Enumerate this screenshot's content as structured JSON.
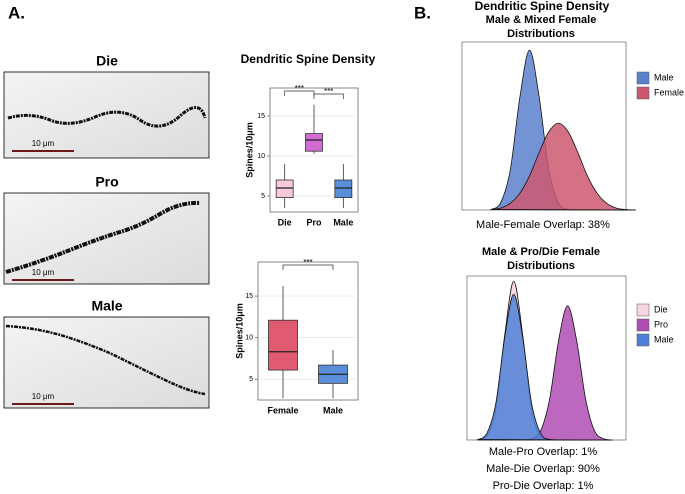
{
  "figure_label_a": "A.",
  "figure_label_b": "B.",
  "panel_b_title": "Dendritic Spine Density",
  "images": [
    {
      "title": "Die",
      "scale": "10 μm"
    },
    {
      "title": "Pro",
      "scale": "10 μm"
    },
    {
      "title": "Male",
      "scale": "10 μm"
    }
  ],
  "chart_data": [
    {
      "type": "box",
      "title": "Dendritic Spine Density",
      "ylabel": "Spines/10μm",
      "categories": [
        "Die",
        "Pro",
        "Male"
      ],
      "colors": [
        "#f8c8dc",
        "#d46ad4",
        "#5b8ed8"
      ],
      "boxes": [
        {
          "whisker_low": 3.5,
          "q1": 4.8,
          "median": 6,
          "q3": 7,
          "whisker_high": 9
        },
        {
          "whisker_low": 10.3,
          "q1": 10.6,
          "median": 12,
          "q3": 12.8,
          "whisker_high": 16.4
        },
        {
          "whisker_low": 3.5,
          "q1": 4.8,
          "median": 6,
          "q3": 7,
          "whisker_high": 9
        }
      ],
      "ylim": [
        3,
        18.5
      ],
      "yticks": [
        5,
        10,
        15
      ],
      "grid": true,
      "annotations": [
        "***",
        "***"
      ]
    },
    {
      "type": "box",
      "ylabel": "Spines/10μm",
      "categories": [
        "Female",
        "Male"
      ],
      "colors": [
        "#e05a72",
        "#5b8ed8"
      ],
      "boxes": [
        {
          "whisker_low": 2.7,
          "q1": 6.1,
          "median": 8.3,
          "q3": 12.1,
          "whisker_high": 16.2
        },
        {
          "whisker_low": 2.7,
          "q1": 4.5,
          "median": 5.6,
          "q3": 6.7,
          "whisker_high": 8.5
        }
      ],
      "ylim": [
        2.5,
        19.1
      ],
      "yticks": [
        5,
        10,
        15
      ],
      "grid": true,
      "annotations": [
        "***"
      ]
    },
    {
      "type": "density",
      "title": [
        "Male & Mixed Female",
        "Distributions"
      ],
      "x": [
        2,
        3,
        4,
        5,
        6,
        7,
        8,
        9,
        10,
        11,
        12,
        13,
        14,
        15,
        16,
        17
      ],
      "xlim": [
        -1,
        16
      ],
      "ylim": [
        0,
        0.35
      ],
      "legend": "right",
      "series": [
        {
          "name": "Male",
          "color": "#5b80cc",
          "values": [
            0.001,
            0.015,
            0.083,
            0.235,
            0.333,
            0.235,
            0.083,
            0.015,
            0.001,
            0,
            0,
            0,
            0,
            0,
            0,
            0
          ]
        },
        {
          "name": "Female",
          "color": "#cc5870",
          "values": [
            0.001,
            0.004,
            0.014,
            0.035,
            0.071,
            0.12,
            0.163,
            0.181,
            0.163,
            0.12,
            0.071,
            0.035,
            0.014,
            0.004,
            0.001,
            0
          ]
        }
      ],
      "annotations": [
        "Male-Female Overlap: 38%"
      ]
    },
    {
      "type": "density",
      "title": [
        "Male & Pro/Die Female",
        "Distributions"
      ],
      "x": [
        2,
        3,
        4,
        5,
        6,
        7,
        8,
        9,
        10,
        11,
        12,
        13,
        14,
        15,
        16,
        17
      ],
      "xlim": [
        0.8,
        18.5
      ],
      "ylim": [
        0,
        0.375
      ],
      "legend": "right",
      "series": [
        {
          "name": "Die",
          "color": "#f6d4e2",
          "values": [
            0.001,
            0.009,
            0.07,
            0.24,
            0.363,
            0.24,
            0.07,
            0.009,
            0.001,
            0,
            0,
            0,
            0,
            0,
            0,
            0
          ]
        },
        {
          "name": "Pro",
          "color": "#b04eb4",
          "values": [
            0,
            0,
            0,
            0,
            0,
            0,
            0.003,
            0.021,
            0.094,
            0.228,
            0.307,
            0.228,
            0.094,
            0.021,
            0.003,
            0
          ]
        },
        {
          "name": "Male",
          "color": "#4f7fd6",
          "values": [
            0.001,
            0.015,
            0.083,
            0.235,
            0.333,
            0.235,
            0.083,
            0.015,
            0.001,
            0,
            0,
            0,
            0,
            0,
            0,
            0
          ]
        }
      ],
      "annotations": [
        "Male-Pro Overlap: 1%",
        "Male-Die Overlap: 90%",
        "Pro-Die   Overlap: 1%"
      ]
    }
  ]
}
